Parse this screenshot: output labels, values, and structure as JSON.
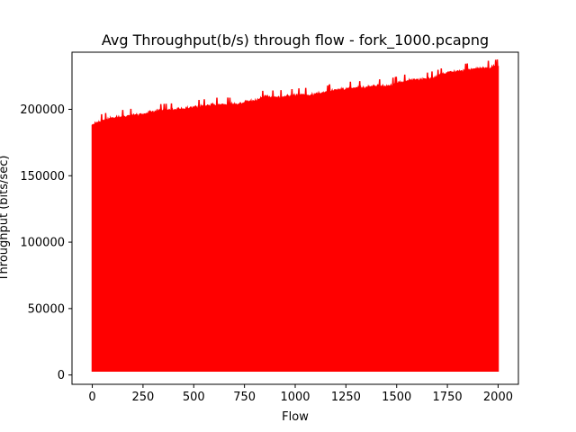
{
  "chart_data": {
    "type": "area",
    "title": "Avg Throughput(b/s) through flow - fork_1000.pcapng",
    "xlabel": "Flow",
    "ylabel": "Throughput (bits/sec)",
    "xlim": [
      -100,
      2100
    ],
    "ylim": [
      -7000,
      243000
    ],
    "x_ticks": [
      0,
      250,
      500,
      750,
      1000,
      1250,
      1500,
      1750,
      2000
    ],
    "y_ticks": [
      0,
      50000,
      100000,
      150000,
      200000
    ],
    "x_tick_labels": [
      "0",
      "250",
      "500",
      "750",
      "1000",
      "1250",
      "1500",
      "1750",
      "2000"
    ],
    "y_tick_labels": [
      "0",
      "50000",
      "100000",
      "150000",
      "200000"
    ],
    "grid": false,
    "legend": "none",
    "series": [
      {
        "color": "#ff0000",
        "x": [
          0,
          50,
          100,
          150,
          200,
          250,
          300,
          350,
          400,
          450,
          500,
          550,
          600,
          650,
          700,
          750,
          800,
          850,
          900,
          950,
          1000,
          1050,
          1100,
          1150,
          1200,
          1250,
          1300,
          1350,
          1400,
          1450,
          1500,
          1550,
          1600,
          1650,
          1700,
          1750,
          1800,
          1850,
          1900,
          1950,
          2000
        ],
        "upper": [
          188000,
          191000,
          193000,
          194000,
          195000,
          196000,
          198000,
          198500,
          199000,
          200000,
          201000,
          202000,
          203000,
          203500,
          203000,
          205000,
          206000,
          209000,
          208500,
          209000,
          210000,
          210500,
          211000,
          212000,
          214000,
          215000,
          215500,
          216000,
          217000,
          217000,
          219000,
          221000,
          221500,
          222000,
          224000,
          227000,
          228000,
          229000,
          230000,
          231000,
          232000
        ],
        "lower": 3000
      }
    ]
  }
}
